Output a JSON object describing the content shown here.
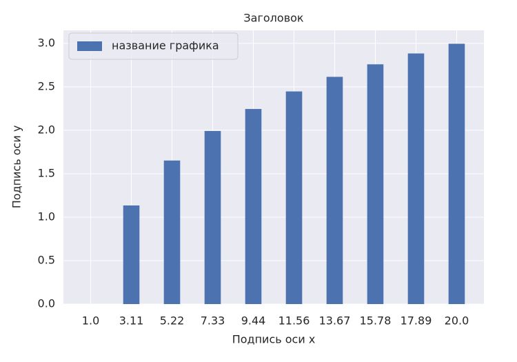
{
  "chart_data": {
    "type": "bar",
    "title": "Заголовок",
    "x_label": "Подпись оси x",
    "y_label": "Подпись оси y",
    "categories": [
      "1.0",
      "3.11",
      "5.22",
      "7.33",
      "9.44",
      "11.56",
      "13.67",
      "15.78",
      "17.89",
      "20.0"
    ],
    "series": [
      {
        "name": "название графика",
        "color": "#4c72b0",
        "values": [
          0,
          1.135,
          1.652,
          1.992,
          2.245,
          2.447,
          2.615,
          2.759,
          2.884,
          2.996
        ]
      }
    ],
    "ylim": [
      0,
      3.15
    ],
    "yticks": [
      {
        "value": 0,
        "label": "0.0"
      },
      {
        "value": 0.5,
        "label": "0.5"
      },
      {
        "value": 1,
        "label": "1.0"
      },
      {
        "value": 1.5,
        "label": "1.5"
      },
      {
        "value": 2,
        "label": "2.0"
      },
      {
        "value": 2.5,
        "label": "2.5"
      },
      {
        "value": 3,
        "label": "3.0"
      }
    ],
    "grid": true,
    "legend": "upper left"
  }
}
